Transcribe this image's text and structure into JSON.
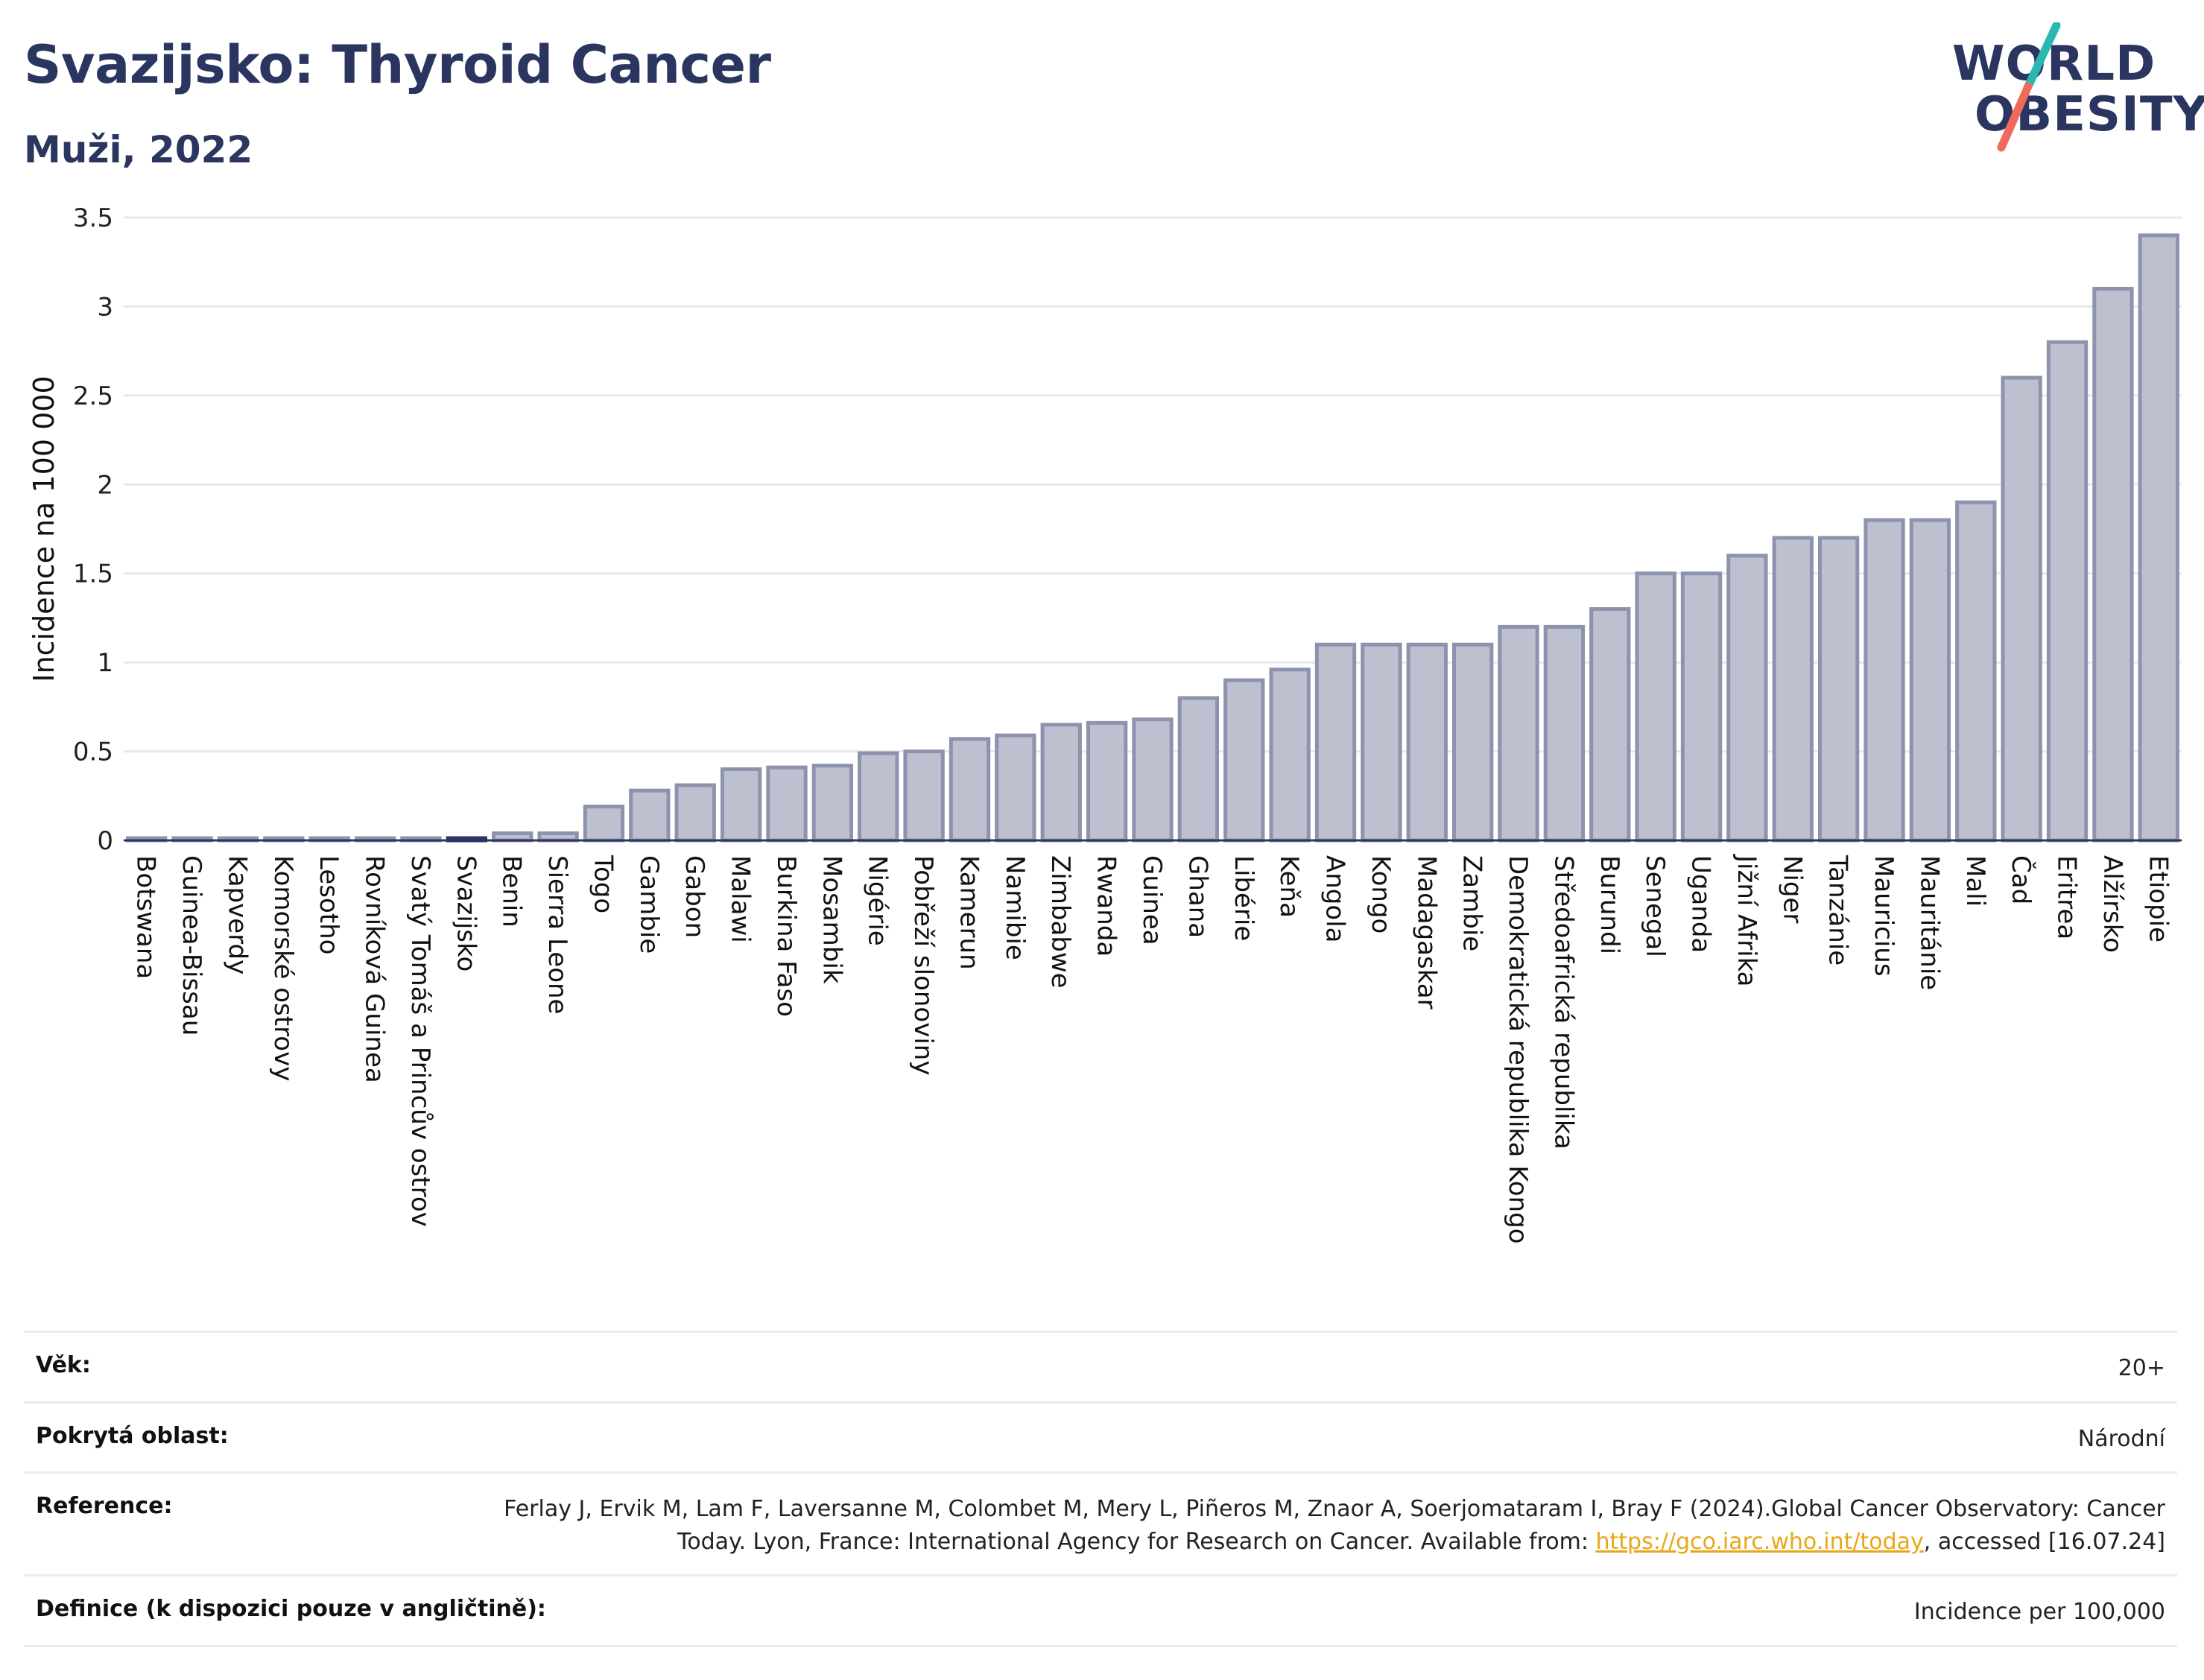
{
  "header": {
    "title": "Svazijsko: Thyroid Cancer",
    "subtitle": "Muži, 2022"
  },
  "logo": {
    "line1": "WORLD",
    "line2": "OBESITY",
    "colors": {
      "text": "#2a3560",
      "slash_top": "#2bb7b1",
      "slash_bottom": "#ef6a5c"
    }
  },
  "colors": {
    "bar_fill": "#bcc0cf",
    "bar_stroke": "#8d93ad",
    "highlight": "#2a3560",
    "grid": "#e6e8ee",
    "axis": "#2a3560"
  },
  "chart_data": {
    "type": "bar",
    "ylabel": "Incidence na 100 000",
    "xlabel": "",
    "ylim": [
      0,
      3.5
    ],
    "yticks": [
      0,
      0.5,
      1,
      1.5,
      2,
      2.5,
      3,
      3.5
    ],
    "ytick_labels": [
      "0",
      "0.5",
      "1",
      "1.5",
      "2",
      "2.5",
      "3",
      "3.5"
    ],
    "grid": true,
    "highlight": "Svazijsko",
    "categories": [
      "Botswana",
      "Guinea-Bissau",
      "Kapverdy",
      "Komorské ostrovy",
      "Lesotho",
      "Rovníková Guinea",
      "Svatý Tomáš a Princův ostrov",
      "Svazijsko",
      "Benin",
      "Sierra Leone",
      "Togo",
      "Gambie",
      "Gabon",
      "Malawi",
      "Burkina Faso",
      "Mosambik",
      "Nigérie",
      "Pobřeží slonoviny",
      "Kamerun",
      "Namibie",
      "Zimbabwe",
      "Rwanda",
      "Guinea",
      "Ghana",
      "Libérie",
      "Keňa",
      "Angola",
      "Kongo",
      "Madagaskar",
      "Zambie",
      "Demokratická republika Kongo",
      "Středoafrická republika",
      "Burundi",
      "Senegal",
      "Uganda",
      "Jižní Afrika",
      "Niger",
      "Tanzánie",
      "Mauricius",
      "Mauritánie",
      "Mali",
      "Čad",
      "Eritrea",
      "Alžírsko",
      "Etiopie"
    ],
    "values": [
      0,
      0,
      0,
      0,
      0,
      0,
      0,
      0,
      0.04,
      0.04,
      0.19,
      0.28,
      0.31,
      0.4,
      0.41,
      0.42,
      0.49,
      0.5,
      0.57,
      0.59,
      0.65,
      0.66,
      0.68,
      0.8,
      0.9,
      0.96,
      1.1,
      1.1,
      1.1,
      1.1,
      1.2,
      1.2,
      1.3,
      1.5,
      1.5,
      1.6,
      1.7,
      1.7,
      1.8,
      1.8,
      1.9,
      2.6,
      2.8,
      3.1,
      3.4
    ]
  },
  "info": [
    {
      "key": "Věk:",
      "value": "20+"
    },
    {
      "key": "Pokrytá oblast:",
      "value": "Národní"
    },
    {
      "key": "Reference:",
      "value_pre": "Ferlay J, Ervik M, Lam F, Laversanne M, Colombet M, Mery L, Piñeros M, Znaor A, Soerjomataram I, Bray F (2024).Global Cancer Observatory: Cancer Today. Lyon, France: International Agency for Research on Cancer. Available from: ",
      "link": "https://gco.iarc.who.int/today",
      "value_post": ", accessed [16.07.24]"
    },
    {
      "key": "Definice (k dispozici pouze v angličtině):",
      "value": "Incidence per 100,000"
    }
  ]
}
